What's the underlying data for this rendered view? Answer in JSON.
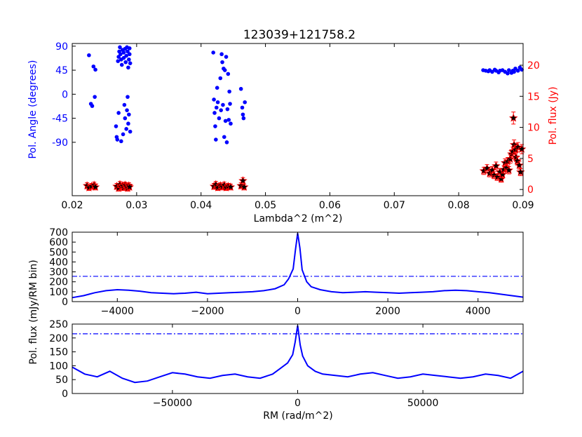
{
  "colors": {
    "blue": "#0000ff",
    "red": "#ff0000",
    "black": "#000000"
  },
  "chart_data": [
    {
      "type": "scatter",
      "title": "123039+121758.2",
      "xlabel": "Lambda^2 (m^2)",
      "xlim": [
        0.02,
        0.09
      ],
      "x_ticks": [
        "0.02",
        "0.03",
        "0.04",
        "0.05",
        "0.06",
        "0.07",
        "0.08",
        "0.09"
      ],
      "ylabel": "Pol. Angle (degrees)",
      "ylim": [
        -190,
        95
      ],
      "y_ticks": [
        "90",
        "45",
        "0",
        "-45",
        "-90"
      ],
      "y2label": "Pol. flux (Jy)",
      "y2lim": [
        -1,
        23.5
      ],
      "y2_ticks": [
        "0",
        "5",
        "10",
        "15",
        "20"
      ],
      "series": [
        {
          "marker": "dot",
          "axis": "left",
          "points": [
            [
              0.0226,
              73
            ],
            [
              0.0229,
              -18
            ],
            [
              0.0231,
              -22
            ],
            [
              0.0233,
              52
            ],
            [
              0.0235,
              -5
            ],
            [
              0.0236,
              46
            ],
            [
              0.0268,
              -60
            ],
            [
              0.0269,
              -80
            ],
            [
              0.027,
              -85
            ],
            [
              0.0271,
              62
            ],
            [
              0.0272,
              70
            ],
            [
              0.0272,
              -35
            ],
            [
              0.0273,
              80
            ],
            [
              0.0274,
              88
            ],
            [
              0.0275,
              75
            ],
            [
              0.0276,
              -88
            ],
            [
              0.0276,
              65
            ],
            [
              0.0277,
              55
            ],
            [
              0.0278,
              83
            ],
            [
              0.0279,
              -75
            ],
            [
              0.028,
              68
            ],
            [
              0.028,
              78
            ],
            [
              0.0281,
              -20
            ],
            [
              0.0282,
              85
            ],
            [
              0.0282,
              -45
            ],
            [
              0.0283,
              60
            ],
            [
              0.0284,
              72
            ],
            [
              0.0284,
              -65
            ],
            [
              0.0285,
              -30
            ],
            [
              0.0285,
              88
            ],
            [
              0.0286,
              -5
            ],
            [
              0.0286,
              80
            ],
            [
              0.0287,
              50
            ],
            [
              0.0287,
              -55
            ],
            [
              0.0288,
              65
            ],
            [
              0.0288,
              -38
            ],
            [
              0.0289,
              86
            ],
            [
              0.0289,
              75
            ],
            [
              0.029,
              -70
            ],
            [
              0.029,
              58
            ],
            [
              0.0419,
              78
            ],
            [
              0.042,
              -10
            ],
            [
              0.0421,
              -35
            ],
            [
              0.0422,
              -60
            ],
            [
              0.0423,
              -85
            ],
            [
              0.0424,
              -25
            ],
            [
              0.0425,
              12
            ],
            [
              0.0426,
              -15
            ],
            [
              0.0428,
              -45
            ],
            [
              0.043,
              30
            ],
            [
              0.0431,
              -30
            ],
            [
              0.0432,
              75
            ],
            [
              0.0433,
              60
            ],
            [
              0.0434,
              -20
            ],
            [
              0.0435,
              48
            ],
            [
              0.0436,
              -80
            ],
            [
              0.0437,
              45
            ],
            [
              0.0438,
              -50
            ],
            [
              0.0439,
              70
            ],
            [
              0.044,
              -90
            ],
            [
              0.0441,
              -28
            ],
            [
              0.0442,
              38
            ],
            [
              0.0443,
              -48
            ],
            [
              0.0444,
              5
            ],
            [
              0.0445,
              -18
            ],
            [
              0.0446,
              -55
            ],
            [
              0.0462,
              10
            ],
            [
              0.0464,
              -25
            ],
            [
              0.0465,
              -38
            ],
            [
              0.0466,
              -45
            ],
            [
              0.0468,
              -15
            ],
            [
              0.0838,
              45
            ],
            [
              0.0842,
              44
            ],
            [
              0.0846,
              43
            ],
            [
              0.0848,
              45
            ],
            [
              0.0852,
              42
            ],
            [
              0.0856,
              46
            ],
            [
              0.0858,
              44
            ],
            [
              0.0862,
              41
            ],
            [
              0.0864,
              44
            ],
            [
              0.0868,
              45
            ],
            [
              0.0872,
              42
            ],
            [
              0.0876,
              39
            ],
            [
              0.0878,
              45
            ],
            [
              0.0882,
              40
            ],
            [
              0.0884,
              44
            ],
            [
              0.0886,
              42
            ],
            [
              0.0888,
              48
            ],
            [
              0.0892,
              44
            ],
            [
              0.0895,
              50
            ],
            [
              0.0898,
              46
            ]
          ]
        },
        {
          "marker": "star",
          "axis": "right",
          "errorbars": true,
          "points": [
            [
              0.0223,
              0.6
            ],
            [
              0.0226,
              0.3
            ],
            [
              0.023,
              0.5
            ],
            [
              0.0234,
              0.7
            ],
            [
              0.0236,
              0.4
            ],
            [
              0.0269,
              0.5
            ],
            [
              0.0272,
              0.2
            ],
            [
              0.0274,
              0.8
            ],
            [
              0.0276,
              0.4
            ],
            [
              0.0278,
              0.6
            ],
            [
              0.028,
              0.3
            ],
            [
              0.0282,
              0.7
            ],
            [
              0.0284,
              0.5
            ],
            [
              0.0286,
              0.2
            ],
            [
              0.0288,
              0.6
            ],
            [
              0.0289,
              0.4
            ],
            [
              0.042,
              0.5
            ],
            [
              0.0423,
              0.8
            ],
            [
              0.0426,
              0.3
            ],
            [
              0.043,
              0.6
            ],
            [
              0.0433,
              0.4
            ],
            [
              0.0436,
              0.7
            ],
            [
              0.0439,
              0.3
            ],
            [
              0.0442,
              0.5
            ],
            [
              0.0446,
              0.4
            ],
            [
              0.0462,
              0.6
            ],
            [
              0.0465,
              1.4
            ],
            [
              0.0467,
              0.4
            ],
            [
              0.0839,
              3.0
            ],
            [
              0.0844,
              3.4
            ],
            [
              0.0848,
              2.6
            ],
            [
              0.0852,
              3.1
            ],
            [
              0.0855,
              2.3
            ],
            [
              0.0858,
              3.8
            ],
            [
              0.086,
              2.0
            ],
            [
              0.0864,
              2.8
            ],
            [
              0.0866,
              1.7
            ],
            [
              0.0868,
              2.4
            ],
            [
              0.087,
              3.2
            ],
            [
              0.0872,
              4.3
            ],
            [
              0.0874,
              3.5
            ],
            [
              0.0876,
              4.5
            ],
            [
              0.0878,
              3.1
            ],
            [
              0.088,
              4.9
            ],
            [
              0.0882,
              5.7
            ],
            [
              0.0884,
              6.1
            ],
            [
              0.0885,
              11.5
            ],
            [
              0.0886,
              7.2
            ],
            [
              0.0888,
              6.4
            ],
            [
              0.0889,
              5.2
            ],
            [
              0.0891,
              4.6
            ],
            [
              0.0892,
              6.8
            ],
            [
              0.0894,
              3.9
            ],
            [
              0.0896,
              2.8
            ],
            [
              0.0898,
              6.5
            ]
          ]
        }
      ]
    },
    {
      "type": "line",
      "xlim": [
        -5000,
        5000
      ],
      "x_ticks": [
        "−4000",
        "−2000",
        "0",
        "2000",
        "4000"
      ],
      "ylim": [
        0,
        700
      ],
      "y_ticks": [
        "0",
        "100",
        "200",
        "300",
        "400",
        "500",
        "600",
        "700"
      ],
      "threshold": 255,
      "series": [
        {
          "x": [
            -5000,
            -4750,
            -4500,
            -4250,
            -4000,
            -3750,
            -3500,
            -3250,
            -3000,
            -2750,
            -2500,
            -2250,
            -2000,
            -1750,
            -1500,
            -1250,
            -1000,
            -750,
            -500,
            -300,
            -200,
            -100,
            -50,
            0,
            50,
            100,
            200,
            300,
            500,
            750,
            1000,
            1250,
            1500,
            1750,
            2000,
            2250,
            2500,
            2750,
            3000,
            3250,
            3500,
            3750,
            4000,
            4250,
            4500,
            4750,
            5000
          ],
          "y": [
            40,
            60,
            90,
            110,
            120,
            115,
            105,
            90,
            85,
            80,
            85,
            95,
            80,
            85,
            90,
            95,
            100,
            110,
            130,
            170,
            230,
            330,
            520,
            690,
            540,
            320,
            200,
            150,
            120,
            100,
            90,
            95,
            100,
            95,
            90,
            85,
            90,
            95,
            100,
            110,
            115,
            110,
            100,
            90,
            75,
            60,
            45
          ]
        }
      ]
    },
    {
      "type": "line",
      "xlabel": "RM (rad/m^2)",
      "xlim": [
        -90000,
        90000
      ],
      "x_ticks": [
        "−50000",
        "0",
        "50000"
      ],
      "ylim": [
        0,
        250
      ],
      "y_ticks": [
        "0",
        "50",
        "100",
        "150",
        "200",
        "250"
      ],
      "threshold": 215,
      "series": [
        {
          "x": [
            -90000,
            -85000,
            -80000,
            -75000,
            -70000,
            -65000,
            -60000,
            -55000,
            -50000,
            -45000,
            -40000,
            -35000,
            -30000,
            -25000,
            -20000,
            -15000,
            -10000,
            -7000,
            -4000,
            -2000,
            -1000,
            0,
            1000,
            2000,
            4000,
            7000,
            10000,
            15000,
            20000,
            25000,
            30000,
            35000,
            40000,
            45000,
            50000,
            55000,
            60000,
            65000,
            70000,
            75000,
            80000,
            85000,
            90000
          ],
          "y": [
            95,
            70,
            60,
            80,
            55,
            40,
            45,
            60,
            75,
            70,
            60,
            55,
            65,
            70,
            60,
            55,
            70,
            90,
            110,
            140,
            185,
            245,
            175,
            135,
            100,
            80,
            70,
            65,
            60,
            70,
            75,
            65,
            55,
            60,
            70,
            65,
            60,
            55,
            60,
            70,
            65,
            55,
            80
          ]
        }
      ]
    }
  ],
  "shared_ylabel": "Pol. flux (mJy/RM bin)"
}
